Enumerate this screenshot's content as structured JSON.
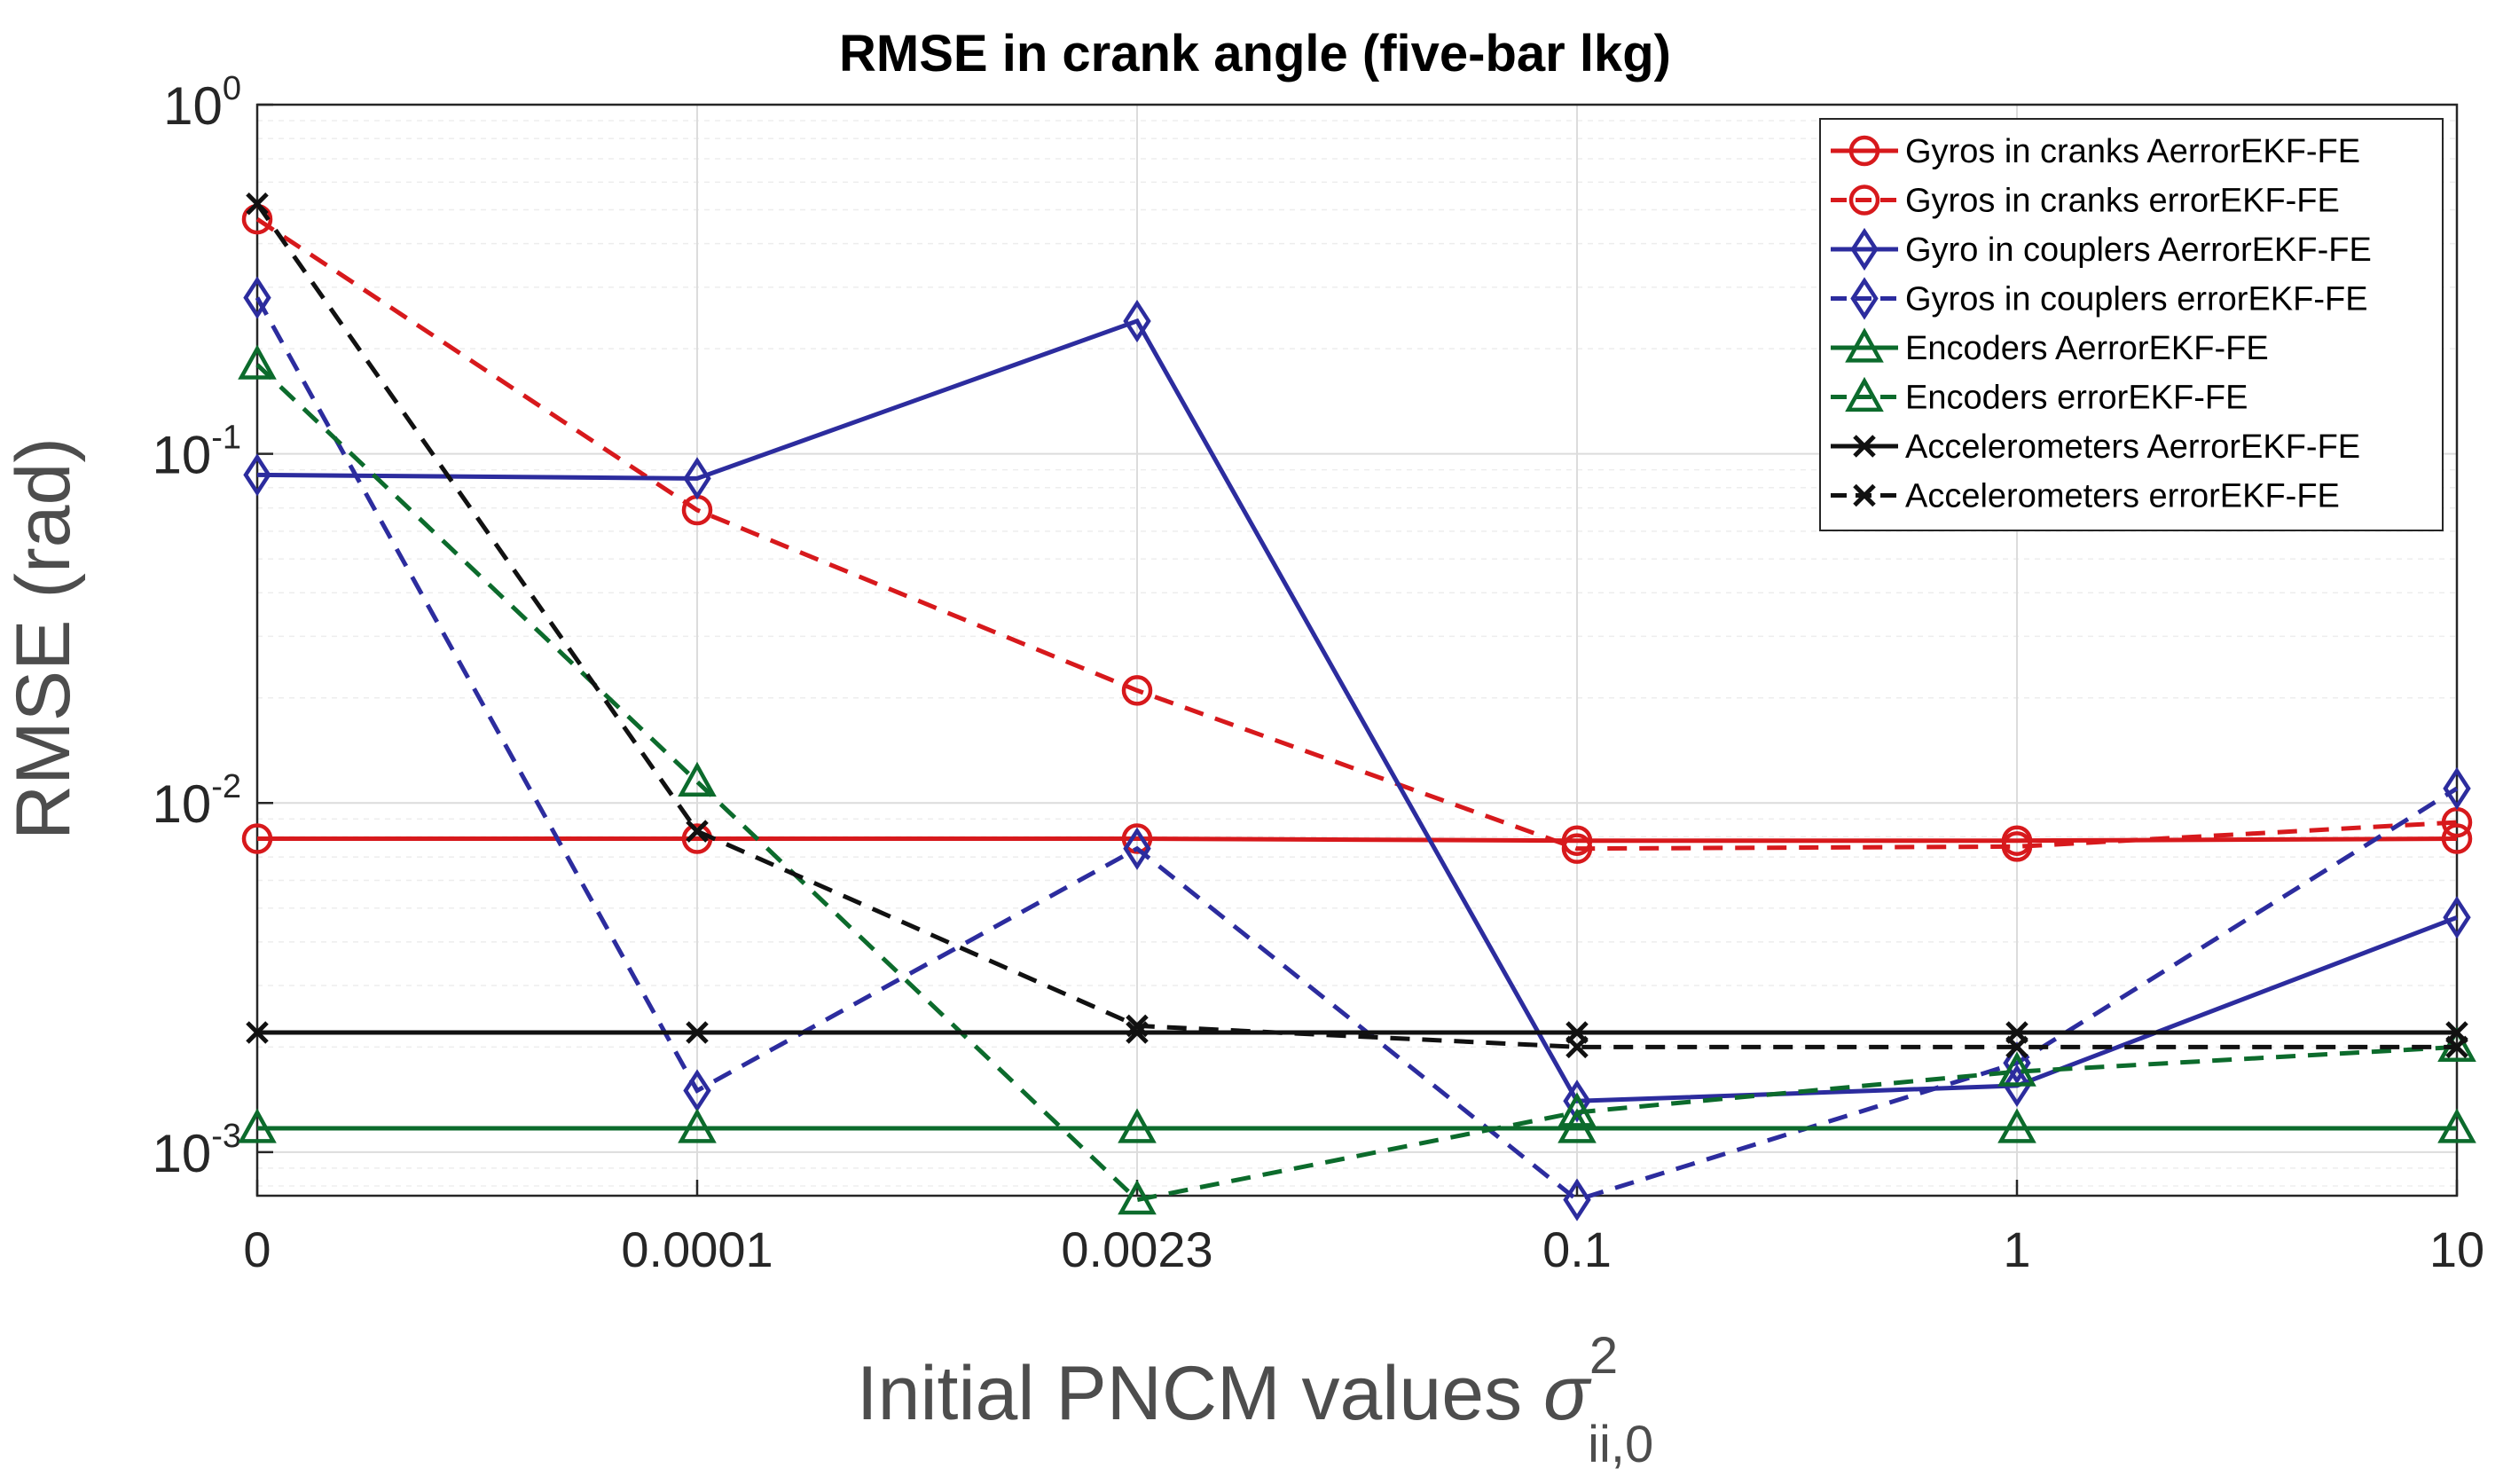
{
  "chart_data": {
    "type": "line",
    "title": "RMSE in crank angle (five-bar lkg)",
    "xlabel_main": "Initial PNCM values ",
    "xlabel_symbol": "σ",
    "xlabel_superscript": "2",
    "xlabel_subscript": "ii,0",
    "ylabel": "RMSE (rad)",
    "yscale": "log",
    "ylim": [
      0.00075,
      1
    ],
    "grid": true,
    "legend_location": "top-right",
    "categories": [
      "0",
      "0.0001",
      "0.0023",
      "0.1",
      "1",
      "10"
    ],
    "y_ticks": [
      {
        "value": 1,
        "base": "10",
        "exp": "0"
      },
      {
        "value": 0.1,
        "base": "10",
        "exp": "-1"
      },
      {
        "value": 0.01,
        "base": "10",
        "exp": "-2"
      },
      {
        "value": 0.001,
        "base": "10",
        "exp": "-3"
      }
    ],
    "series": [
      {
        "name": "Gyros in cranks AerrorEKF-FE",
        "color": "#d7191c",
        "dash": "solid",
        "marker": "circle",
        "values": [
          0.0079,
          0.0079,
          0.0079,
          0.0078,
          0.0078,
          0.0079
        ]
      },
      {
        "name": "Gyros in cranks errorEKF-FE",
        "color": "#d7191c",
        "dash": "dashed",
        "marker": "circle",
        "values": [
          0.47,
          0.069,
          0.021,
          0.0074,
          0.0075,
          0.0088
        ]
      },
      {
        "name": "Gyro in couplers AerrorEKF-FE",
        "color": "#2c2c9e",
        "dash": "solid",
        "marker": "diamond",
        "values": [
          0.087,
          0.085,
          0.24,
          0.0014,
          0.00155,
          0.0047
        ]
      },
      {
        "name": "Gyros in couplers errorEKF-FE",
        "color": "#2c2c9e",
        "dash": "dashed",
        "marker": "diamond",
        "values": [
          0.28,
          0.0015,
          0.0074,
          0.00073,
          0.0018,
          0.011
        ]
      },
      {
        "name": "Encoders AerrorEKF-FE",
        "color": "#0c6b2c",
        "dash": "solid",
        "marker": "triangle",
        "values": [
          0.00117,
          0.00117,
          0.00117,
          0.00117,
          0.00117,
          0.00117
        ]
      },
      {
        "name": "Encoders errorEKF-FE",
        "color": "#0c6b2c",
        "dash": "dashed",
        "marker": "triangle",
        "values": [
          0.18,
          0.0115,
          0.00073,
          0.0013,
          0.0017,
          0.002
        ]
      },
      {
        "name": "Accelerometers AerrorEKF-FE",
        "color": "#111111",
        "dash": "solid",
        "marker": "x",
        "values": [
          0.0022,
          0.0022,
          0.0022,
          0.0022,
          0.0022,
          0.0022
        ]
      },
      {
        "name": "Accelerometers errorEKF-FE",
        "color": "#111111",
        "dash": "dashed",
        "marker": "x",
        "values": [
          0.52,
          0.0083,
          0.0023,
          0.002,
          0.002,
          0.002
        ]
      }
    ]
  }
}
